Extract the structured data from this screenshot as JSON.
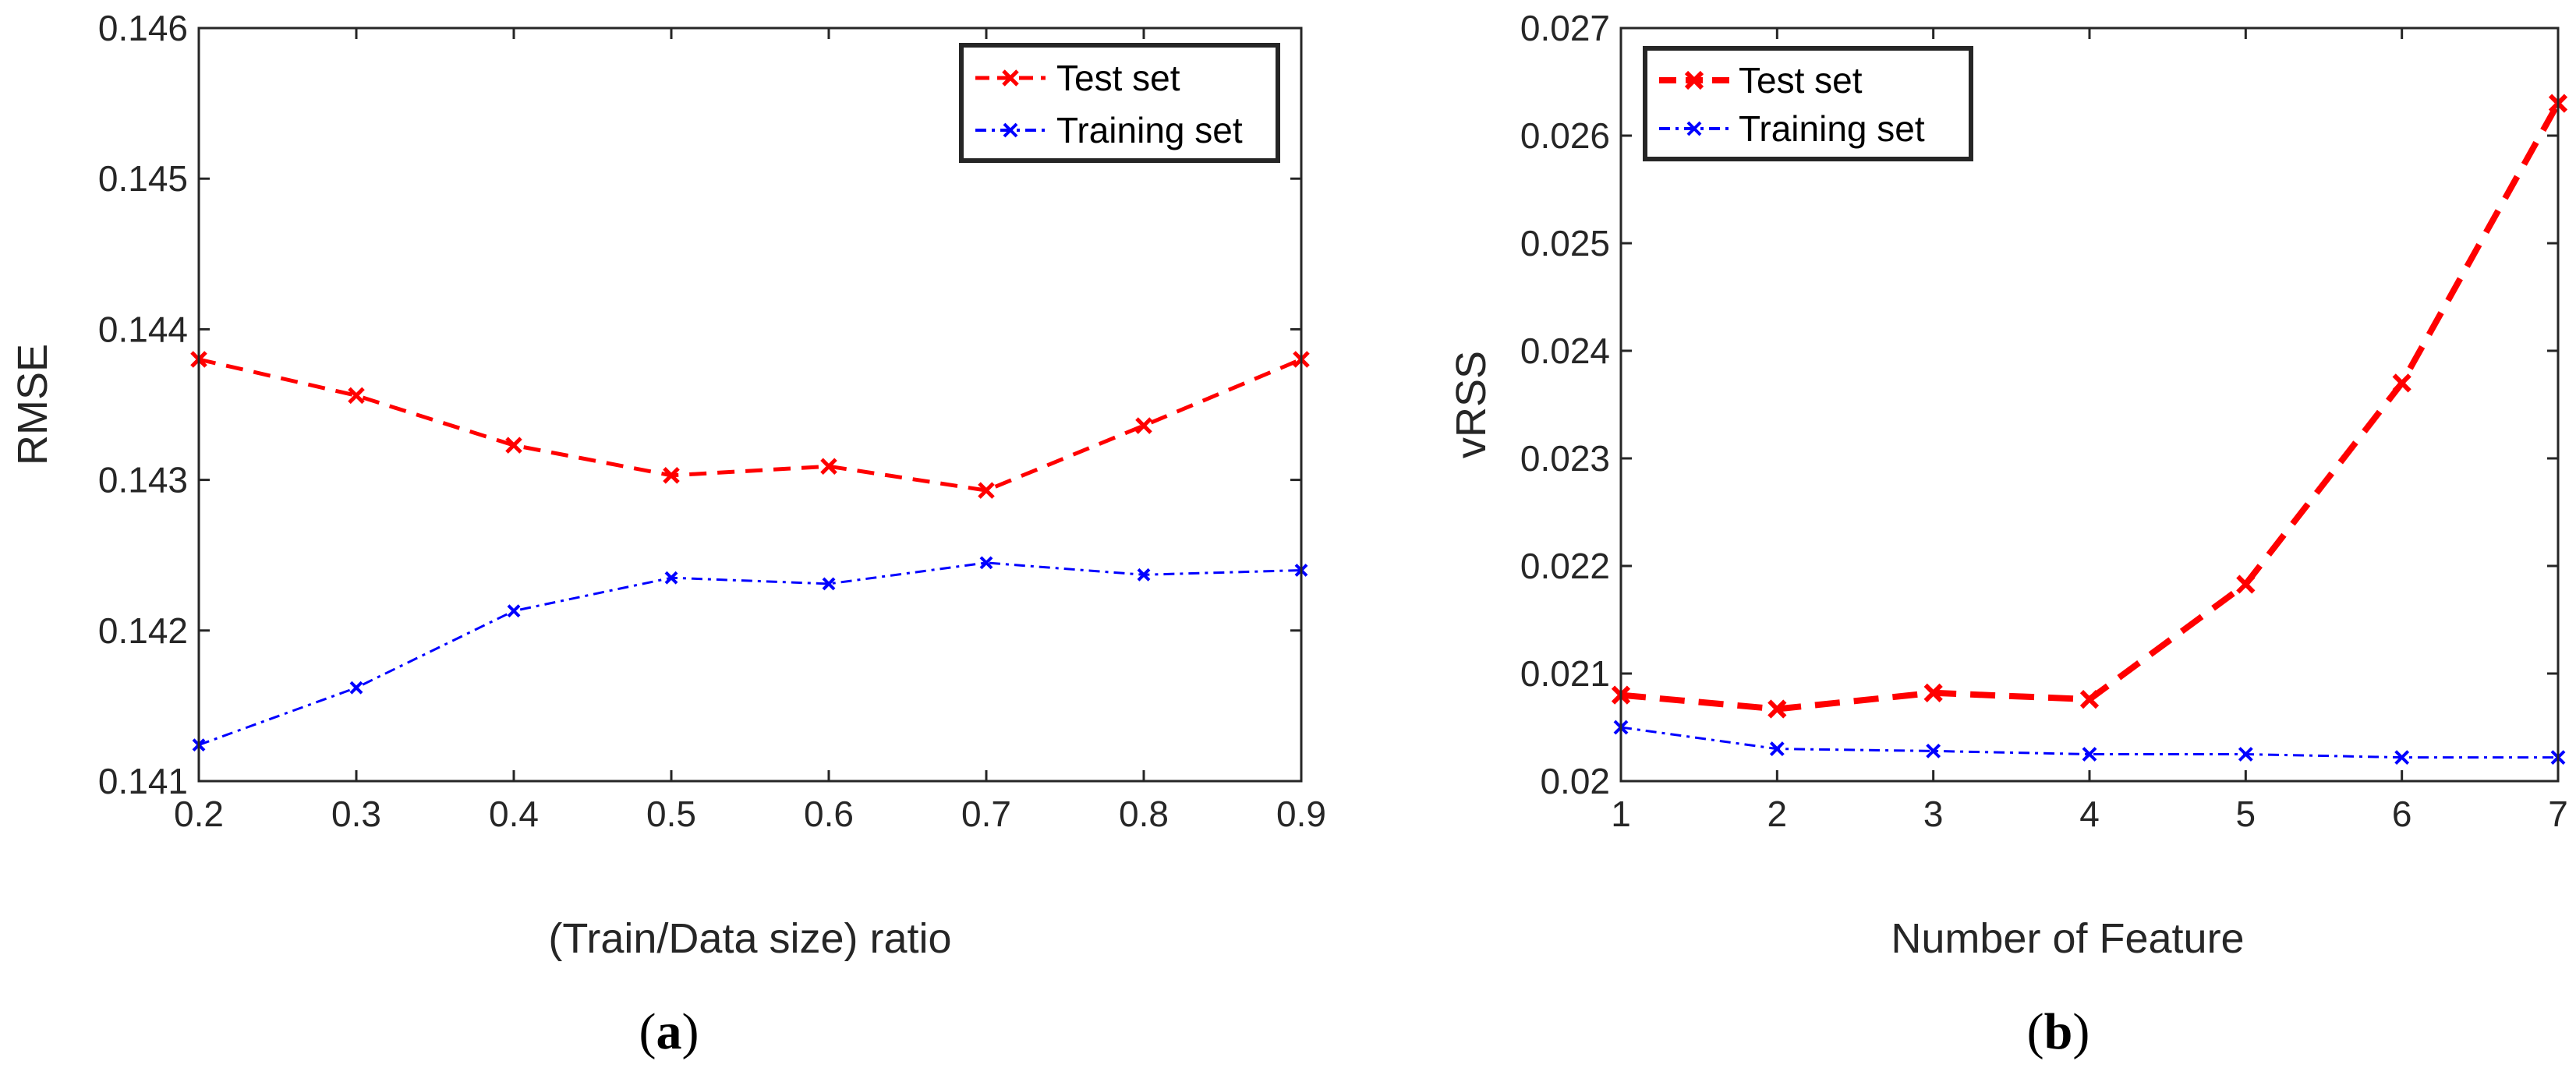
{
  "figure": {
    "captions": [
      {
        "open": "(",
        "letter": "a",
        "close": ")"
      },
      {
        "open": "(",
        "letter": "b",
        "close": ")"
      }
    ]
  },
  "colors": {
    "test": "#ff0000",
    "training": "#0000ff",
    "axis": "#262626",
    "legend_border": "#262626"
  },
  "chart_data": [
    {
      "type": "line",
      "title": "",
      "xlabel": "(Train/Data size) ratio",
      "ylabel": "RMSE",
      "xlim": [
        0.2,
        0.9
      ],
      "ylim": [
        0.141,
        0.146
      ],
      "xticks": [
        0.2,
        0.3,
        0.4,
        0.5,
        0.6,
        0.7,
        0.8,
        0.9
      ],
      "xtick_labels": [
        "0.2",
        "0.3",
        "0.4",
        "0.5",
        "0.6",
        "0.7",
        "0.8",
        "0.9"
      ],
      "yticks": [
        0.141,
        0.142,
        0.143,
        0.144,
        0.145,
        0.146
      ],
      "ytick_labels": [
        "0.141",
        "0.142",
        "0.143",
        "0.144",
        "0.145",
        "0.146"
      ],
      "grid": false,
      "legend_position": "top-right",
      "x": [
        0.2,
        0.3,
        0.4,
        0.5,
        0.6,
        0.7,
        0.8,
        0.9
      ],
      "series": [
        {
          "name": "Test set",
          "color": "#ff0000",
          "style": "dashed",
          "marker": "x",
          "values": [
            0.1438,
            0.14356,
            0.14323,
            0.14303,
            0.14309,
            0.14293,
            0.14336,
            0.1438
          ]
        },
        {
          "name": "Training set",
          "color": "#0000ff",
          "style": "dashdot",
          "marker": "x",
          "values": [
            0.14124,
            0.14162,
            0.14213,
            0.14235,
            0.14231,
            0.14245,
            0.14237,
            0.1424
          ]
        }
      ]
    },
    {
      "type": "line",
      "title": "",
      "xlabel": "Number of Feature",
      "ylabel": "vRSS",
      "xlim": [
        1,
        7
      ],
      "ylim": [
        0.02,
        0.027
      ],
      "xticks": [
        1,
        2,
        3,
        4,
        5,
        6,
        7
      ],
      "xtick_labels": [
        "1",
        "2",
        "3",
        "4",
        "5",
        "6",
        "7"
      ],
      "yticks": [
        0.02,
        0.021,
        0.022,
        0.023,
        0.024,
        0.025,
        0.026,
        0.027
      ],
      "ytick_labels": [
        "0.02",
        "0.021",
        "0.022",
        "0.023",
        "0.024",
        "0.025",
        "0.026",
        "0.027"
      ],
      "grid": false,
      "legend_position": "top-left",
      "x": [
        1,
        2,
        3,
        4,
        5,
        6,
        7
      ],
      "series": [
        {
          "name": "Test set",
          "color": "#ff0000",
          "style": "dashed",
          "marker": "x",
          "values": [
            0.0208,
            0.02067,
            0.02082,
            0.02076,
            0.02183,
            0.0237,
            0.0263
          ]
        },
        {
          "name": "Training set",
          "color": "#0000ff",
          "style": "dashdot",
          "marker": "x",
          "values": [
            0.0205,
            0.0203,
            0.02028,
            0.02025,
            0.02025,
            0.02022,
            0.02022
          ]
        }
      ]
    }
  ]
}
